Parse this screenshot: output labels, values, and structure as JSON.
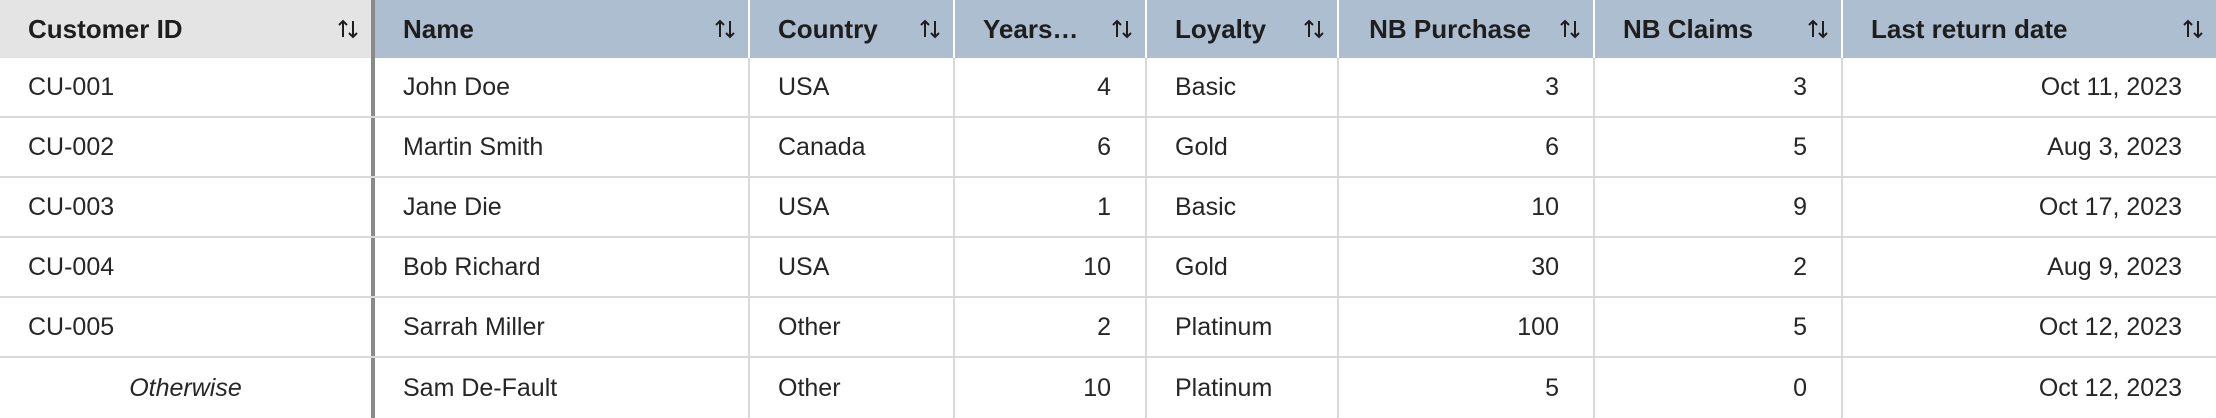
{
  "columns": [
    {
      "label": "Customer ID",
      "sort_icon": "sort-arrows-icon"
    },
    {
      "label": "Name",
      "sort_icon": "sort-arrows-icon"
    },
    {
      "label": "Country",
      "sort_icon": "sort-arrows-icon"
    },
    {
      "label": "Years a…",
      "sort_icon": "sort-arrows-icon"
    },
    {
      "label": "Loyalty",
      "sort_icon": "sort-arrows-icon"
    },
    {
      "label": "NB Purchase",
      "sort_icon": "sort-arrows-icon"
    },
    {
      "label": "NB Claims",
      "sort_icon": "sort-arrows-icon"
    },
    {
      "label": "Last return date",
      "sort_icon": "sort-arrows-icon"
    }
  ],
  "rows": [
    {
      "customer_id": "CU-001",
      "name": "John Doe",
      "country": "USA",
      "years": "4",
      "loyalty": "Basic",
      "nb_purchase": "3",
      "nb_claims": "3",
      "last_return": "Oct 11, 2023"
    },
    {
      "customer_id": "CU-002",
      "name": "Martin Smith",
      "country": "Canada",
      "years": "6",
      "loyalty": "Gold",
      "nb_purchase": "6",
      "nb_claims": "5",
      "last_return": "Aug 3, 2023"
    },
    {
      "customer_id": "CU-003",
      "name": "Jane Die",
      "country": "USA",
      "years": "1",
      "loyalty": "Basic",
      "nb_purchase": "10",
      "nb_claims": "9",
      "last_return": "Oct 17, 2023"
    },
    {
      "customer_id": "CU-004",
      "name": "Bob Richard",
      "country": "USA",
      "years": "10",
      "loyalty": "Gold",
      "nb_purchase": "30",
      "nb_claims": "2",
      "last_return": "Aug 9, 2023"
    },
    {
      "customer_id": "CU-005",
      "name": "Sarrah Miller",
      "country": "Other",
      "years": "2",
      "loyalty": "Platinum",
      "nb_purchase": "100",
      "nb_claims": "5",
      "last_return": "Oct 12, 2023"
    },
    {
      "customer_id": "Otherwise",
      "name": "Sam De-Fault",
      "country": "Other",
      "years": "10",
      "loyalty": "Platinum",
      "nb_purchase": "5",
      "nb_claims": "0",
      "last_return": "Oct 12, 2023"
    }
  ],
  "colors": {
    "header_bg": "#acbecf",
    "pinned_header_bg": "#e4e4e4",
    "grid_line": "#d9d9d9",
    "pinned_divider": "#8a8a8a"
  }
}
